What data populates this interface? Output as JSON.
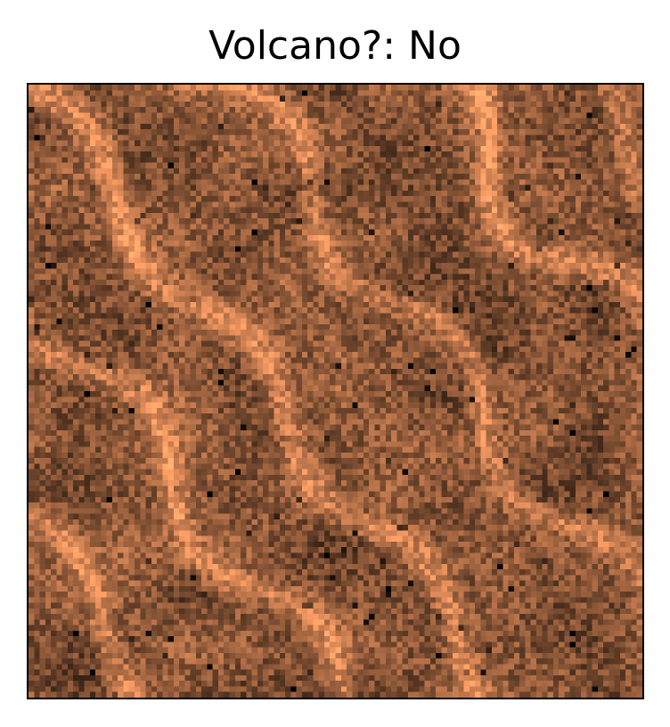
{
  "figure": {
    "title": "Volcano?: No"
  },
  "image": {
    "description_icon": "radar-terrain-image",
    "colormap": "copper",
    "colors": {
      "dark": "#000000",
      "mid": "#8a5a36",
      "light": "#ffc27e"
    },
    "axes_ticks_visible": false
  }
}
